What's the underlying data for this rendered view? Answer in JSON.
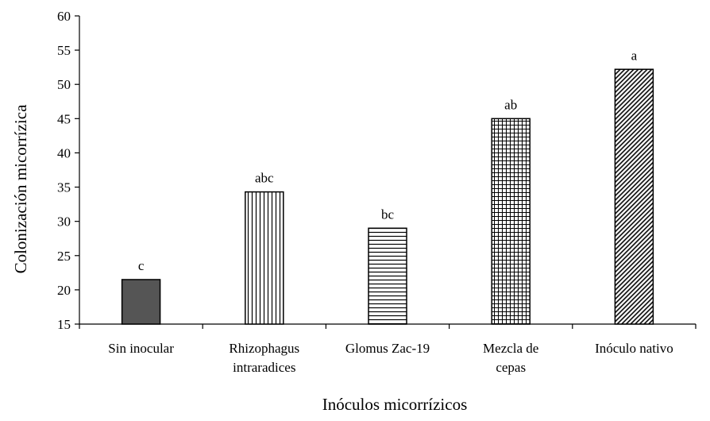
{
  "chart_data": {
    "type": "bar",
    "title": "",
    "xlabel": "Inóculos micorrízicos",
    "ylabel": "Colonización micorrízica",
    "ylim": [
      15,
      60
    ],
    "ytick_step": 5,
    "categories": [
      [
        "Sin inocular"
      ],
      [
        "Rhizophagus",
        "intraradices"
      ],
      [
        "Glomus Zac-19"
      ],
      [
        "Mezcla de",
        "cepas"
      ],
      [
        "Inóculo nativo"
      ]
    ],
    "values": [
      21.5,
      34.3,
      29.0,
      45.0,
      52.2
    ],
    "significance_letters": [
      "c",
      "abc",
      "bc",
      "ab",
      "a"
    ],
    "bar_patterns": [
      "solid",
      "vertical-lines",
      "horizontal-lines",
      "grid",
      "diagonal-lines"
    ],
    "colors": {
      "solid_fill": "#555555",
      "stroke": "#000000"
    }
  }
}
